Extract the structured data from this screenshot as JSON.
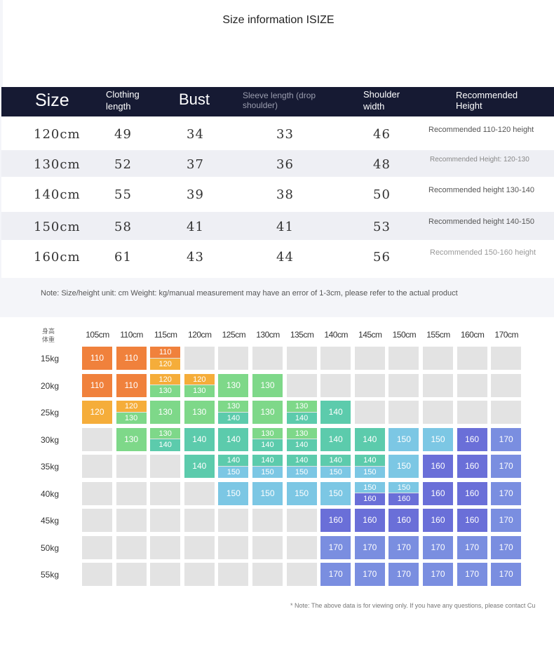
{
  "title": "Size information ISIZE",
  "size_table": {
    "headers": [
      "Size",
      "Clothing length",
      "Bust",
      "Sleeve length (drop shoulder)",
      "Shoulder width",
      "Recommended Height"
    ],
    "rows": [
      {
        "size": "120cm",
        "length": "49",
        "bust": "34",
        "sleeve": "33",
        "shoulder": "46",
        "rec": "Recommended 110-120 height"
      },
      {
        "size": "130cm",
        "length": "52",
        "bust": "37",
        "sleeve": "36",
        "shoulder": "48",
        "rec": "Recommended Height: 120-130"
      },
      {
        "size": "140cm",
        "length": "55",
        "bust": "39",
        "sleeve": "38",
        "shoulder": "50",
        "rec": "Recommended height 130-140"
      },
      {
        "size": "150cm",
        "length": "58",
        "bust": "41",
        "sleeve": "41",
        "shoulder": "53",
        "rec": "Recommended height 140-150"
      },
      {
        "size": "160cm",
        "length": "61",
        "bust": "43",
        "sleeve": "44",
        "shoulder": "56",
        "rec": "Recommended 150-160 height"
      }
    ],
    "note": "Note: Size/height unit: cm Weight: kg/manual measurement may have an error of 1-3cm, please refer to the actual product"
  },
  "grid": {
    "corner": [
      "身高",
      "体重"
    ],
    "heights": [
      "105cm",
      "110cm",
      "115cm",
      "120cm",
      "125cm",
      "130cm",
      "135cm",
      "140cm",
      "145cm",
      "150cm",
      "155cm",
      "160cm",
      "170cm"
    ],
    "weights": [
      "15kg",
      "20kg",
      "25kg",
      "30kg",
      "35kg",
      "40kg",
      "45kg",
      "50kg",
      "55kg"
    ],
    "cells": [
      [
        [
          "110"
        ],
        [
          "110"
        ],
        [
          "110",
          "120"
        ],
        [],
        [],
        [],
        [],
        [],
        [],
        [],
        [],
        [],
        []
      ],
      [
        [
          "110"
        ],
        [
          "110"
        ],
        [
          "120",
          "130"
        ],
        [
          "120",
          "130"
        ],
        [
          "130"
        ],
        [
          "130"
        ],
        [],
        [],
        [],
        [],
        [],
        [],
        []
      ],
      [
        [
          "120"
        ],
        [
          "120",
          "130"
        ],
        [
          "130"
        ],
        [
          "130"
        ],
        [
          "130",
          "140"
        ],
        [
          "130"
        ],
        [
          "130",
          "140"
        ],
        [
          "140"
        ],
        [],
        [],
        [],
        [],
        []
      ],
      [
        [],
        [
          "130"
        ],
        [
          "130",
          "140"
        ],
        [
          "140"
        ],
        [
          "140"
        ],
        [
          "130",
          "140"
        ],
        [
          "130",
          "140"
        ],
        [
          "140"
        ],
        [
          "140"
        ],
        [
          "150"
        ],
        [
          "150"
        ],
        [
          "160"
        ],
        [
          "170"
        ]
      ],
      [
        [],
        [],
        [],
        [
          "140"
        ],
        [
          "140",
          "150"
        ],
        [
          "140",
          "150"
        ],
        [
          "140",
          "150"
        ],
        [
          "140",
          "150"
        ],
        [
          "140",
          "150"
        ],
        [
          "150"
        ],
        [
          "160"
        ],
        [
          "160"
        ],
        [
          "170"
        ]
      ],
      [
        [],
        [],
        [],
        [],
        [
          "150"
        ],
        [
          "150"
        ],
        [
          "150"
        ],
        [
          "150"
        ],
        [
          "150",
          "160"
        ],
        [
          "150",
          "160"
        ],
        [
          "160"
        ],
        [
          "160"
        ],
        [
          "170"
        ]
      ],
      [
        [],
        [],
        [],
        [],
        [],
        [],
        [],
        [
          "160"
        ],
        [
          "160"
        ],
        [
          "160"
        ],
        [
          "160"
        ],
        [
          "160"
        ],
        [
          "170"
        ]
      ],
      [
        [],
        [],
        [],
        [],
        [],
        [],
        [],
        [
          "170"
        ],
        [
          "170"
        ],
        [
          "170"
        ],
        [
          "170"
        ],
        [
          "170"
        ],
        [
          "170"
        ]
      ],
      [
        [],
        [],
        [],
        [],
        [],
        [],
        [],
        [
          "170"
        ],
        [
          "170"
        ],
        [
          "170"
        ],
        [
          "170"
        ],
        [
          "170"
        ],
        [
          "170"
        ]
      ]
    ],
    "colors": {
      "110": "#f0813c",
      "120": "#f5ad3a",
      "130": "#7ed889",
      "140": "#5ccbac",
      "150": "#7cc7e4",
      "160": "#6a6fd8",
      "170": "#7a8ee0",
      "empty": "#e3e3e3"
    }
  },
  "footer_note": "* Note: The above data is for viewing only. If you have any questions, please contact Cu"
}
